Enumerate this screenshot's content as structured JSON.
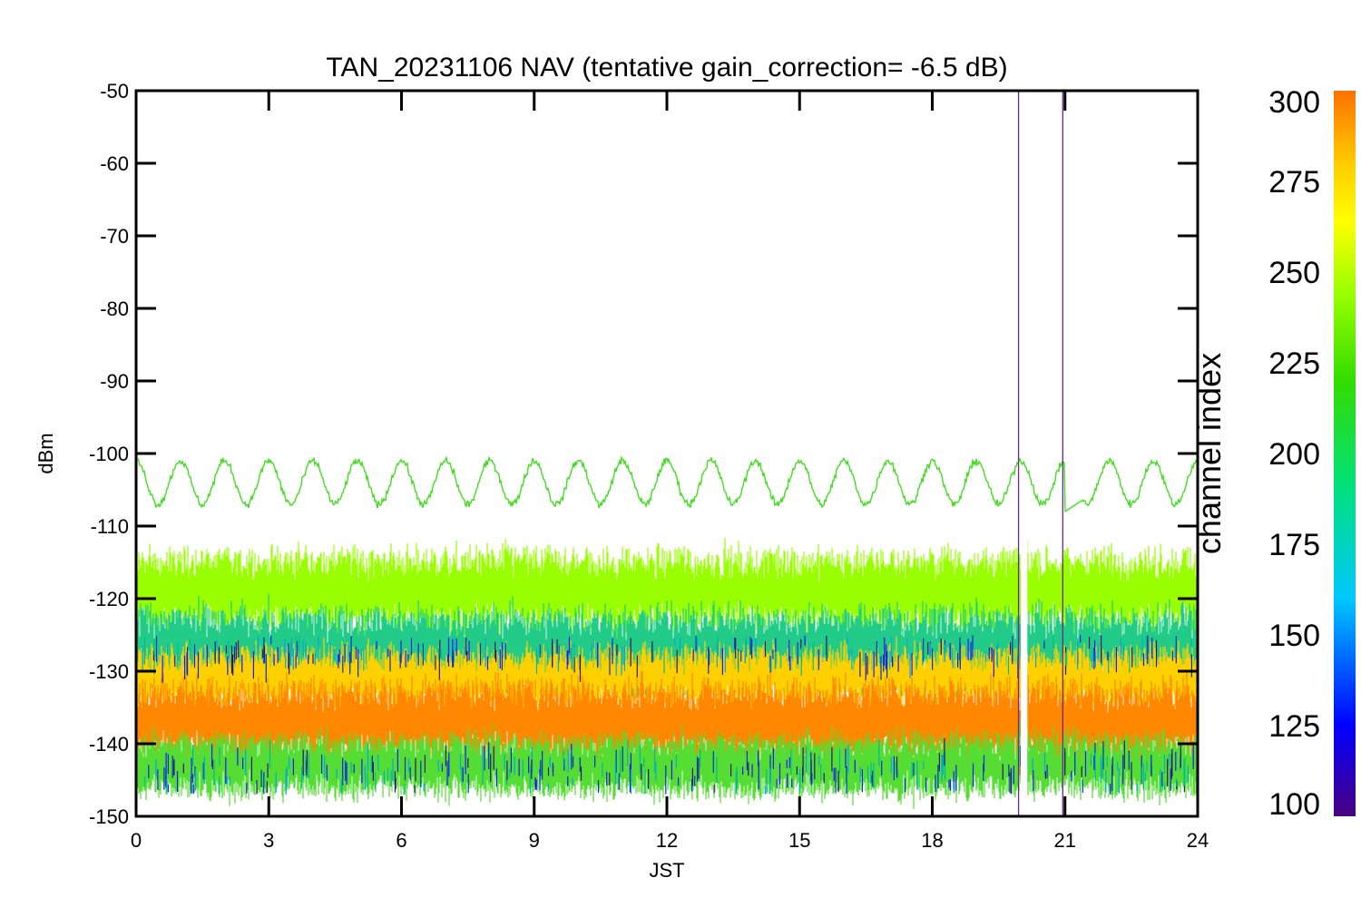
{
  "chart_data": {
    "type": "line",
    "title": "TAN_20231106 NAV (tentative gain_correction= -6.5 dB)",
    "xlabel": "JST",
    "ylabel": "dBm",
    "xlim": [
      0,
      24
    ],
    "ylim": [
      -150,
      -50
    ],
    "x_ticks": [
      "0",
      "3",
      "6",
      "9",
      "12",
      "15",
      "18",
      "21",
      "24"
    ],
    "y_ticks": [
      "-50",
      "-60",
      "-70",
      "-80",
      "-90",
      "-100",
      "-110",
      "-120",
      "-130",
      "-140",
      "-150"
    ],
    "grid": false,
    "colorbar": {
      "label": "channel index",
      "range": [
        100,
        300
      ],
      "ticks": [
        "100",
        "125",
        "150",
        "175",
        "200",
        "225",
        "250",
        "275",
        "300"
      ],
      "colormap": "rainbow",
      "color_stops": [
        "#4b0082",
        "#0000ff",
        "#00c8ff",
        "#00e080",
        "#33dd00",
        "#99ff00",
        "#ffff00",
        "#ffcc00",
        "#ff8000"
      ]
    },
    "series": [
      {
        "channel_index": 245,
        "color": "#44dd22",
        "description": "sinusoidal NAV line",
        "mean_dBm": -104,
        "amplitude_dB": 3,
        "period_h": 1.0,
        "spike_min_dBm": -108
      },
      {
        "channel_index": 262,
        "color": "#99ff00",
        "description": "noise band",
        "center_dBm": -119,
        "spread_dB": 4
      },
      {
        "channel_index": 190,
        "color": "#22cc88",
        "description": "scattered channels",
        "center_dBm": -127,
        "spread_dB": 4
      },
      {
        "channel_index": 275,
        "color": "#ffd000",
        "description": "noise band",
        "center_dBm": -131,
        "spread_dB": 3
      },
      {
        "channel_index": 300,
        "color": "#ff8800",
        "description": "main noise band",
        "center_dBm": -137,
        "spread_dB": 4
      },
      {
        "channel_index": 230,
        "color": "#55dd33",
        "description": "lower fringe",
        "center_dBm": -143,
        "spread_dB": 3
      }
    ],
    "gap": {
      "x_start": 20.0,
      "x_end": 20.15
    },
    "vertical_lines": [
      {
        "x": 19.95,
        "color": "#6a2a8a"
      },
      {
        "x": 20.95,
        "color": "#6a2a8a"
      }
    ]
  }
}
